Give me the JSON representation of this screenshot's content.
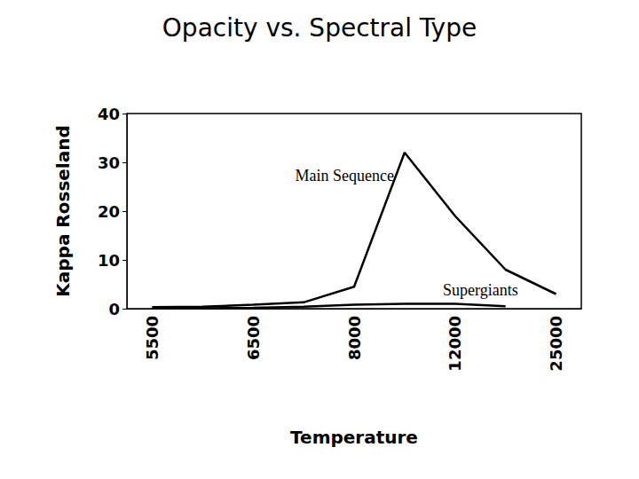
{
  "chart_data": {
    "type": "line",
    "title": "Opacity vs. Spectral Type",
    "x_label": "Temperature",
    "y_label": "Kappa Rosseland",
    "categories": [
      "5500",
      null,
      "6500",
      null,
      "8000",
      null,
      "12000",
      null,
      "25000"
    ],
    "series": [
      {
        "name": "Main Sequence",
        "color": "#000000",
        "values": [
          0.3,
          0.4,
          0.8,
          1.3,
          4.5,
          32,
          19,
          8,
          3
        ]
      },
      {
        "name": "Supergiants",
        "color": "#000000",
        "values": [
          0.1,
          0.1,
          0.2,
          0.4,
          0.8,
          1,
          1,
          0.5,
          null
        ]
      }
    ],
    "ylim": [
      0,
      40
    ],
    "yticks": [
      0,
      10,
      20,
      30,
      40
    ],
    "grid": false
  }
}
